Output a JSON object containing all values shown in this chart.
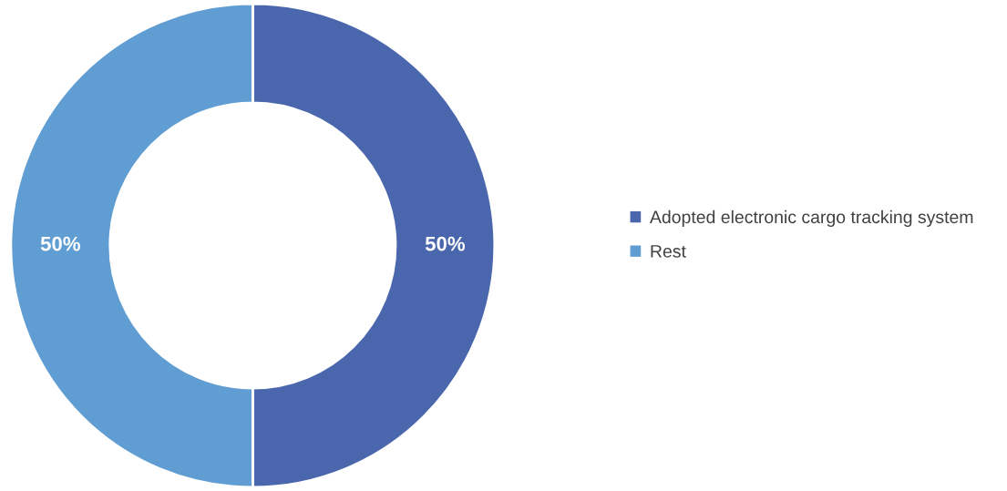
{
  "chart_data": {
    "type": "donut",
    "categories": [
      "Adopted electronic cargo tracking system",
      "Rest"
    ],
    "values": [
      50,
      50
    ],
    "colors": [
      "#4a66ad",
      "#5f9dd2"
    ],
    "value_labels": [
      "50%",
      "50%"
    ],
    "legend": "right"
  }
}
